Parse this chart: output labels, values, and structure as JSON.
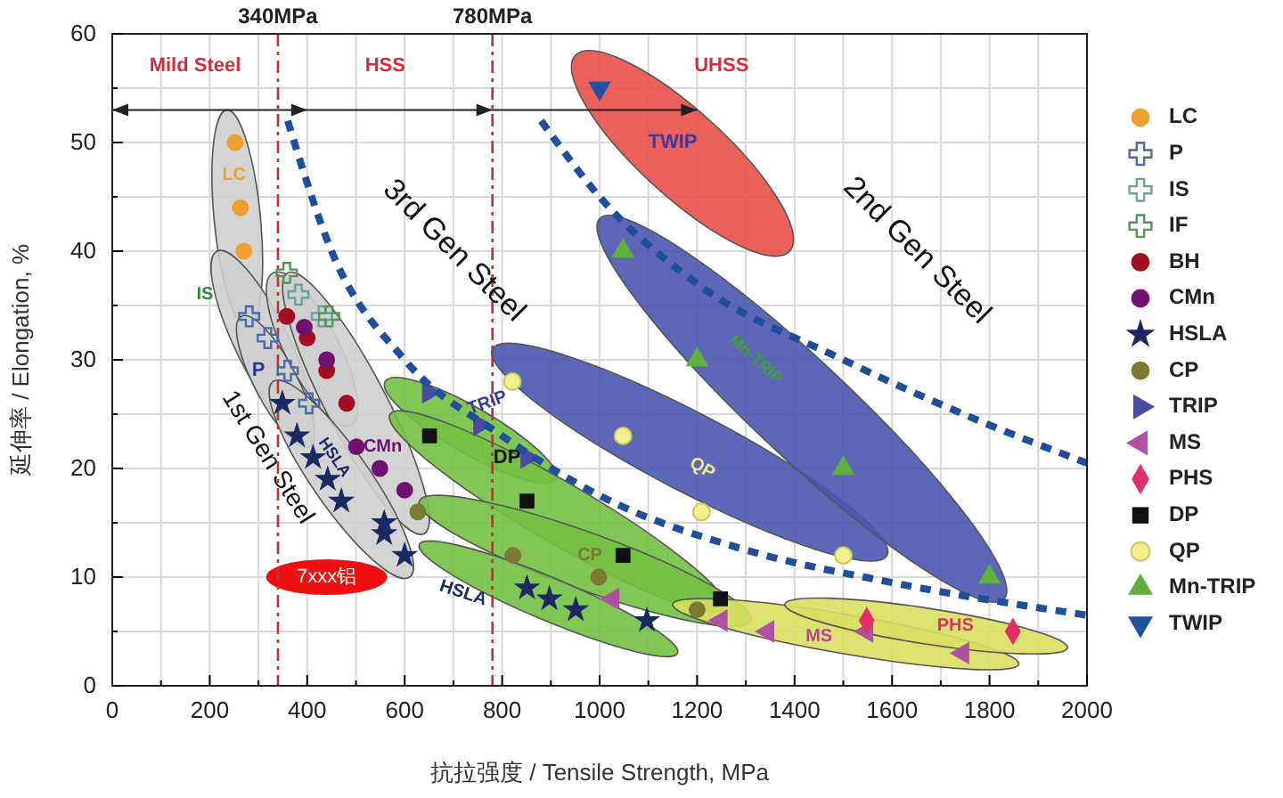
{
  "chart_data": {
    "type": "scatter",
    "xlabel": "抗拉强度 / Tensile Strength, MPa",
    "ylabel": "延伸率 / Elongation, %",
    "xlim": [
      0,
      2000
    ],
    "ylim": [
      0,
      60
    ],
    "xticks": [
      0,
      {
        "value": 100,
        "label": null
      },
      200,
      {
        "value": 300,
        "label": null
      },
      400,
      {
        "value": 500,
        "label": null
      },
      600,
      {
        "value": 700,
        "label": null
      },
      800,
      {
        "value": 900,
        "label": null
      },
      1000,
      {
        "value": 1100,
        "label": null
      },
      1200,
      {
        "value": 1300,
        "label": null
      },
      1400,
      {
        "value": 1500,
        "label": null
      },
      1600,
      {
        "value": 1700,
        "label": null
      },
      1800,
      {
        "value": 1900,
        "label": null
      },
      2000
    ],
    "yticks": [
      0,
      {
        "value": 5,
        "label": null
      },
      10,
      {
        "value": 15,
        "label": null
      },
      20,
      {
        "value": 25,
        "label": null
      },
      30,
      {
        "value": 35,
        "label": null
      },
      40,
      {
        "value": 45,
        "label": null
      },
      50,
      {
        "value": 55,
        "label": null
      },
      60
    ],
    "grid": true,
    "legend": "right",
    "ref_lines": [
      {
        "axis": "x",
        "value": 340,
        "label": "340MPa",
        "color": "#c0303a",
        "line_style": "dashed"
      },
      {
        "axis": "x",
        "value": 780,
        "label": "780MPa",
        "color": "#c0303a",
        "line_style": "dashed"
      }
    ],
    "annotations": [
      "Mild Steel",
      "HSS",
      "UHSS",
      "LC",
      "IS",
      "P",
      "CMn",
      "HSLA",
      "1st Gen Steel",
      "3rd Gen Steel",
      "2nd Gen Steel",
      "TRIP",
      "DP",
      "CP",
      "HSLA",
      "QP",
      "Mn-TRIP",
      "TWIP",
      "MS",
      "PHS",
      "7xxx铝"
    ],
    "series": [
      {
        "name": "LC",
        "color": "#f0a030",
        "marker": "circle",
        "x": [
          252,
          263,
          270
        ],
        "values": [
          50,
          44,
          40
        ]
      },
      {
        "name": "P",
        "color": "#4a6aa8",
        "marker": "cross",
        "x": [
          281,
          319,
          360,
          404
        ],
        "values": [
          34,
          32,
          29,
          26
        ]
      },
      {
        "name": "IS",
        "color": "#6aa0a0",
        "marker": "cross",
        "x": [
          382,
          430
        ],
        "values": [
          36,
          34
        ]
      },
      {
        "name": "IF",
        "color": "#5a9060",
        "marker": "cross",
        "x": [
          358,
          445
        ],
        "values": [
          38,
          34
        ]
      },
      {
        "name": "BH",
        "color": "#a01020",
        "marker": "circle",
        "x": [
          358,
          400,
          440,
          481
        ],
        "values": [
          34,
          32,
          29,
          26
        ]
      },
      {
        "name": "CMn",
        "color": "#701070",
        "marker": "circle",
        "x": [
          394,
          440,
          501,
          549,
          600
        ],
        "values": [
          33,
          30,
          22,
          20,
          18
        ]
      },
      {
        "name": "HSLA",
        "color": "#1a2a60",
        "marker": "star",
        "x": [
          349,
          379,
          412,
          442,
          470,
          558,
          558,
          600,
          851,
          897,
          951,
          1097
        ],
        "values": [
          26,
          23,
          21,
          19,
          17,
          15,
          14,
          12,
          9,
          8,
          7,
          6
        ]
      },
      {
        "name": "CP",
        "color": "#7a7a30",
        "marker": "circle",
        "x": [
          627,
          822,
          998,
          1200
        ],
        "values": [
          16,
          12,
          10,
          7
        ]
      },
      {
        "name": "TRIP",
        "color": "#4a4aa0",
        "marker": "triangle-right",
        "x": [
          649,
          754,
          851
        ],
        "values": [
          27,
          24,
          21
        ]
      },
      {
        "name": "MS",
        "color": "#b050a0",
        "marker": "triangle-left",
        "x": [
          1027,
          1249,
          1345,
          1548,
          1745
        ],
        "values": [
          8,
          6,
          5,
          5,
          3
        ]
      },
      {
        "name": "PHS",
        "color": "#e0306a",
        "marker": "diamond",
        "x": [
          1548,
          1848
        ],
        "values": [
          6,
          5
        ]
      },
      {
        "name": "DP",
        "color": "#111111",
        "marker": "square",
        "x": [
          651,
          851,
          1048,
          1248
        ],
        "values": [
          23,
          17,
          12,
          8
        ]
      },
      {
        "name": "QP",
        "color": "#f0f090",
        "marker": "circle",
        "x": [
          821,
          1048,
          1209,
          1500
        ],
        "values": [
          28,
          23,
          16,
          12
        ]
      },
      {
        "name": "Mn-TRIP",
        "color": "#60b040",
        "marker": "triangle",
        "x": [
          1048,
          1200,
          1500,
          1800
        ],
        "values": [
          40,
          30,
          20,
          10
        ]
      },
      {
        "name": "TWIP",
        "color": "#2050a0",
        "marker": "triangle-down",
        "x": [
          1000
        ],
        "values": [
          55
        ]
      },
      {
        "type": "line",
        "color": "#1f4e9a",
        "line_style": "dashed",
        "marker": "none",
        "x": [
          360,
          450,
          600,
          800,
          1000,
          1300,
          1600,
          2000
        ],
        "values": [
          52,
          40,
          30,
          23,
          17.5,
          12.5,
          9.5,
          6.5
        ]
      },
      {
        "type": "line",
        "color": "#1f4e9a",
        "line_style": "dashed",
        "marker": "none",
        "x": [
          880,
          1000,
          1200,
          1500,
          1800,
          2000
        ],
        "values": [
          52,
          45,
          37,
          30,
          24,
          20.5
        ]
      }
    ]
  }
}
